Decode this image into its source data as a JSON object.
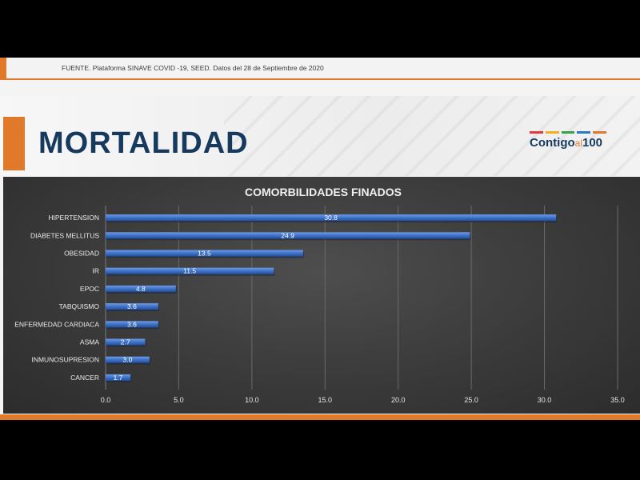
{
  "source": "FUENTE. Plataforma SINAVE COVID -19, SEED. Datos del 28 de Septiembre de 2020",
  "header": {
    "title": "MORTALIDAD",
    "logo_main": "Contigo",
    "logo_al": "al",
    "logo_num": "100"
  },
  "colors": {
    "orange": "#e07a2a",
    "navy": "#153a5e",
    "bar": "#3f73c8",
    "panel": "#3a3a3a"
  },
  "chart_data": {
    "type": "bar",
    "orientation": "horizontal",
    "title": "COMORBILIDADES FINADOS",
    "categories": [
      "HIPERTENSION",
      "DIABETES MELLITUS",
      "OBESIDAD",
      "IR",
      "EPOC",
      "TABQUISMO",
      "ENFERMEDAD CARDIACA",
      "ASMA",
      "INMUNOSUPRESION",
      "CANCER"
    ],
    "values": [
      30.8,
      24.9,
      13.5,
      11.5,
      4.8,
      3.6,
      3.6,
      2.7,
      3.0,
      1.7
    ],
    "value_labels": [
      "30.8",
      "24.9",
      "13.5",
      "11.5",
      "4.8",
      "3.6",
      "3.6",
      "2.7",
      "3.0",
      "1.7"
    ],
    "xlim": [
      0,
      35
    ],
    "ticks": [
      "0.0",
      "5.0",
      "10.0",
      "15.0",
      "20.0",
      "25.0",
      "30.0",
      "35.0"
    ],
    "grid": true
  }
}
